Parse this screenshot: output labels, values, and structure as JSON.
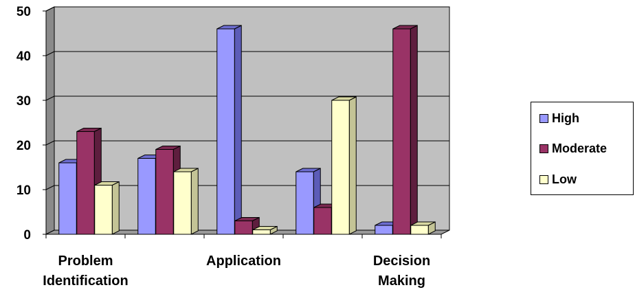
{
  "chart_data": {
    "type": "bar",
    "title": "",
    "xlabel": "",
    "ylabel": "",
    "categories": [
      "Problem Identification",
      "",
      "Application",
      "",
      "Decision Making"
    ],
    "category_label_lines": [
      [
        "Problem",
        "Identification"
      ],
      [],
      [
        "Application"
      ],
      [],
      [
        "Decision",
        "Making"
      ]
    ],
    "series": [
      {
        "name": "High",
        "values": [
          16,
          17,
          46,
          14,
          2
        ]
      },
      {
        "name": "Moderate",
        "values": [
          23,
          19,
          3,
          6,
          46
        ]
      },
      {
        "name": "Low",
        "values": [
          11,
          14,
          1,
          30,
          2
        ]
      }
    ],
    "yticks": [
      0,
      10,
      20,
      30,
      40,
      50
    ],
    "ylim": [
      0,
      50
    ],
    "grid": true,
    "legend_position": "right",
    "style": "3d-clustered-column",
    "colors": {
      "plot_back": "#c0c0c0",
      "plot_side": "#8a8a8a",
      "floor": "#9a9a9a",
      "series": [
        {
          "front": "#9999ff",
          "top": "#6d6dd0",
          "side": "#5c5cb8"
        },
        {
          "front": "#993366",
          "top": "#7a2850",
          "side": "#5e1e3e"
        },
        {
          "front": "#ffffcc",
          "top": "#d8d8a2",
          "side": "#c4c496"
        }
      ]
    }
  }
}
